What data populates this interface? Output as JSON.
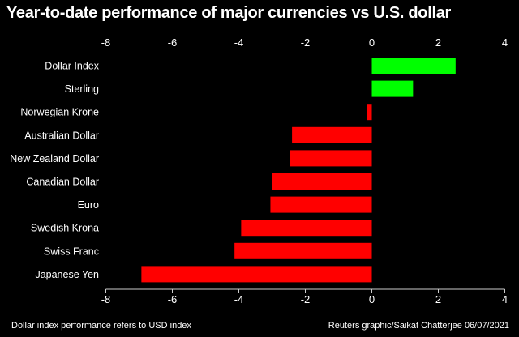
{
  "chart_data": {
    "type": "bar",
    "orientation": "horizontal",
    "title": "Year-to-date performance of major currencies vs U.S. dollar",
    "categories": [
      "Dollar Index",
      "Sterling",
      "Norwegian Krone",
      "Australian Dollar",
      "New Zealand Dollar",
      "Canadian Dollar",
      "Euro",
      "Swedish Krona",
      "Swiss Franc",
      "Japanese Yen"
    ],
    "values": [
      2.52,
      1.24,
      -0.14,
      -2.4,
      -2.46,
      -3.01,
      -3.05,
      -3.93,
      -4.13,
      -6.93
    ],
    "xlim": [
      -8,
      4
    ],
    "xticks": [
      -8,
      -6,
      -4,
      -2,
      0,
      2,
      4
    ],
    "xlabel": "",
    "ylabel": "",
    "grid": false,
    "colors": {
      "positive": "#00ff00",
      "negative": "#ff0000"
    }
  },
  "footer": {
    "note": "Dollar index performance refers to USD index",
    "credit": "Reuters graphic/Saikat Chatterjee 06/07/2021"
  }
}
